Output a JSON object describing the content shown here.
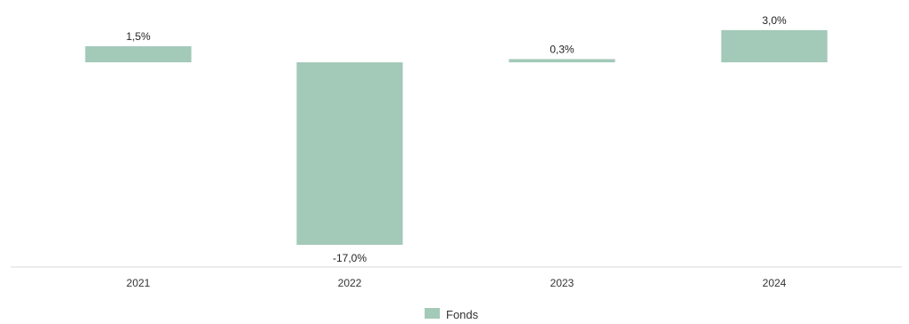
{
  "chart_data": {
    "type": "bar",
    "categories": [
      "2021",
      "2022",
      "2023",
      "2024"
    ],
    "series": [
      {
        "name": "Fonds",
        "values": [
          1.5,
          -17.0,
          0.3,
          3.0
        ],
        "labels": [
          "1,5%",
          "-17,0%",
          "0,3%",
          "3,0%"
        ],
        "color": "#a3c9b9"
      }
    ],
    "ylim": [
      -17.0,
      3.0
    ],
    "grid": false,
    "legend_position": "bottom-center",
    "axis_color": "#ececec"
  }
}
